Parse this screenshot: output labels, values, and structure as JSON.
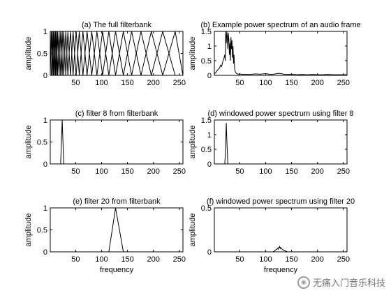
{
  "chart_data": [
    {
      "type": "line",
      "title": "(a) The full filterbank",
      "xlabel": "",
      "ylabel": "amplitude",
      "xlim": [
        1,
        257
      ],
      "ylim": [
        0,
        1
      ],
      "xticks": [
        50,
        100,
        150,
        200,
        250
      ],
      "yticks": [
        0,
        0.5,
        1
      ],
      "filter_edge_bins": [
        1,
        3,
        5,
        7,
        9,
        11,
        13,
        15,
        18,
        21,
        24,
        27,
        31,
        35,
        40,
        45,
        51,
        57,
        64,
        72,
        81,
        91,
        102,
        114,
        127,
        142,
        158,
        176,
        196,
        218,
        242,
        257
      ]
    },
    {
      "type": "line",
      "title": "(b) Example power spectrum of an audio frame",
      "xlabel": "",
      "ylabel": "amplitude",
      "xlim": [
        1,
        257
      ],
      "ylim": [
        0,
        1.5
      ],
      "xticks": [
        50,
        100,
        150,
        200,
        250
      ],
      "yticks": [
        0,
        0.5,
        1,
        1.5
      ],
      "series": [
        {
          "x": [
            1,
            4,
            8,
            11,
            13,
            15,
            17,
            19,
            21,
            22,
            23,
            24,
            25,
            26,
            27,
            28,
            29,
            30,
            31,
            32,
            33,
            34,
            35,
            36,
            37,
            38,
            39,
            40,
            41,
            42,
            44,
            47,
            50,
            55,
            60,
            70,
            80,
            90,
            100,
            110,
            120,
            125,
            130,
            135,
            140,
            150,
            160,
            170,
            180,
            190,
            200,
            210,
            220,
            230,
            240,
            250,
            257
          ],
          "y": [
            0.05,
            0.1,
            0.2,
            0.25,
            0.35,
            0.3,
            0.45,
            0.55,
            0.7,
            0.5,
            1.5,
            1.1,
            1.5,
            1.3,
            0.9,
            1.45,
            1.2,
            0.7,
            1.1,
            0.5,
            1.3,
            0.9,
            1.2,
            0.6,
            1.0,
            0.4,
            0.7,
            0.25,
            0.15,
            0.1,
            0.06,
            0.04,
            0.05,
            0.03,
            0.04,
            0.03,
            0.05,
            0.04,
            0.06,
            0.03,
            0.05,
            0.07,
            0.06,
            0.04,
            0.03,
            0.04,
            0.02,
            0.03,
            0.02,
            0.03,
            0.02,
            0.02,
            0.03,
            0.02,
            0.02,
            0.02,
            0.02
          ]
        }
      ]
    },
    {
      "type": "line",
      "title": "(c) filter 8 from filterbank",
      "xlabel": "",
      "ylabel": "amplitude",
      "xlim": [
        1,
        257
      ],
      "ylim": [
        0,
        1
      ],
      "xticks": [
        50,
        100,
        150,
        200,
        250
      ],
      "yticks": [
        0,
        0.5,
        1
      ],
      "series": [
        {
          "x": [
            1,
            21,
            24,
            27,
            257
          ],
          "y": [
            0,
            0,
            1,
            0,
            0
          ]
        }
      ]
    },
    {
      "type": "line",
      "title": "(d) windowed power spectrum using filter 8",
      "xlabel": "",
      "ylabel": "amplitude",
      "xlim": [
        1,
        257
      ],
      "ylim": [
        0,
        1.5
      ],
      "xticks": [
        50,
        100,
        150,
        200,
        250
      ],
      "yticks": [
        0,
        0.5,
        1,
        1.5
      ],
      "series": [
        {
          "x": [
            1,
            21,
            22,
            23,
            24,
            25,
            26,
            27,
            257
          ],
          "y": [
            0,
            0,
            0.25,
            0.75,
            1.4,
            0.85,
            0.45,
            0,
            0
          ]
        }
      ]
    },
    {
      "type": "line",
      "title": "(e) filter 20 from filterbank",
      "xlabel": "frequency",
      "ylabel": "amplitude",
      "xlim": [
        1,
        257
      ],
      "ylim": [
        0,
        1
      ],
      "xticks": [
        50,
        100,
        150,
        200,
        250
      ],
      "yticks": [
        0,
        0.5,
        1
      ],
      "series": [
        {
          "x": [
            1,
            114,
            127,
            142,
            257
          ],
          "y": [
            0,
            0,
            1,
            0,
            0
          ]
        }
      ]
    },
    {
      "type": "line",
      "title": "(f) windowed power spectrum using filter 20",
      "xlabel": "frequency",
      "ylabel": "amplitude",
      "xlim": [
        1,
        257
      ],
      "ylim": [
        0,
        0.5
      ],
      "xticks": [
        50,
        100,
        150,
        200,
        250
      ],
      "yticks": [
        0,
        0.5
      ],
      "series": [
        {
          "x": [
            1,
            114,
            117,
            119,
            121,
            123,
            124,
            125,
            126,
            127,
            128,
            129,
            130,
            132,
            134,
            136,
            138,
            142,
            257
          ],
          "y": [
            0,
            0,
            0.01,
            0.02,
            0.03,
            0.04,
            0.03,
            0.05,
            0.045,
            0.06,
            0.04,
            0.05,
            0.035,
            0.03,
            0.02,
            0.015,
            0.01,
            0,
            0
          ]
        }
      ]
    }
  ],
  "watermark": {
    "text": "无痛入门音乐科技"
  }
}
